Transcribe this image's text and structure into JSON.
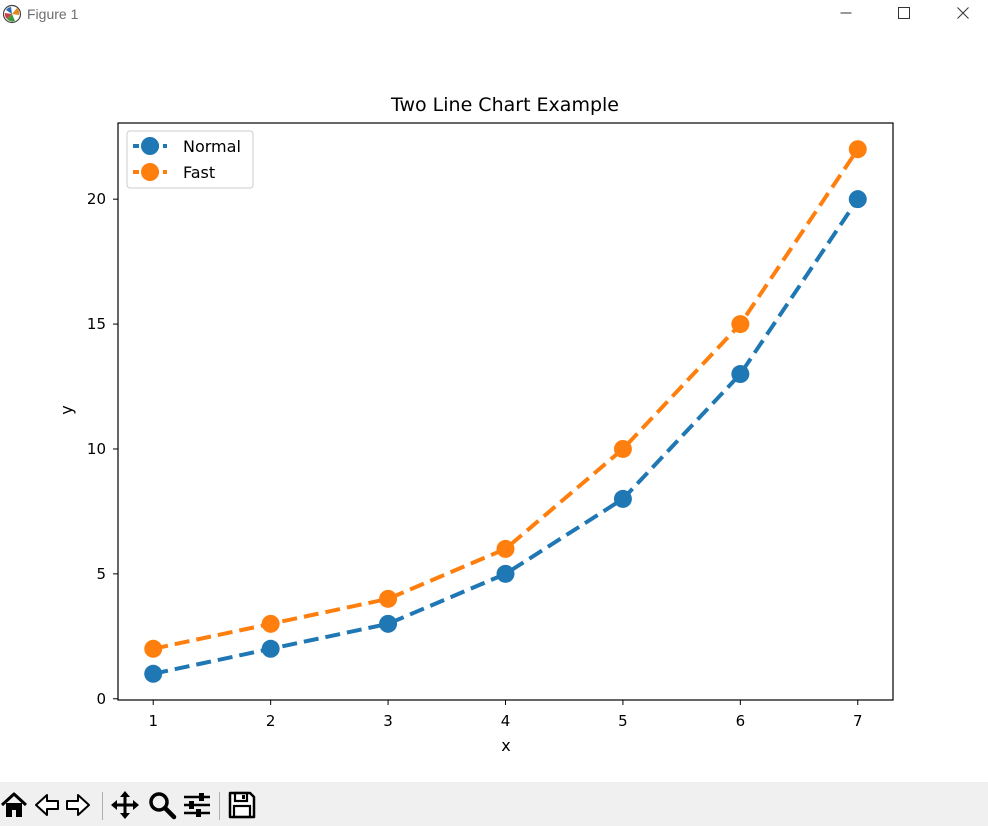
{
  "window": {
    "title": "Figure 1",
    "icons": [
      "app-icon",
      "minimize-icon",
      "maximize-icon",
      "close-icon"
    ]
  },
  "toolbar": {
    "icons": [
      "home-icon",
      "back-arrow-icon",
      "forward-arrow-icon",
      "pan-icon",
      "zoom-icon",
      "configure-subplots-icon",
      "save-icon"
    ]
  },
  "chart_data": {
    "type": "line",
    "title": "Two Line Chart Example",
    "xlabel": "x",
    "ylabel": "y",
    "x": [
      1,
      2,
      3,
      4,
      5,
      6,
      7
    ],
    "xticks": [
      "1",
      "2",
      "3",
      "4",
      "5",
      "6",
      "7"
    ],
    "yticks": [
      "0",
      "5",
      "10",
      "15",
      "20"
    ],
    "xlim": [
      0.7,
      7.3
    ],
    "ylim": [
      -0.05,
      23.05
    ],
    "grid": false,
    "legend_position": "top-left",
    "line_style": "dashed",
    "marker": "circle",
    "series": [
      {
        "name": "Normal",
        "values": [
          1,
          2,
          3,
          5,
          8,
          13,
          20
        ],
        "color": "#1f77b4"
      },
      {
        "name": "Fast",
        "values": [
          2,
          3,
          4,
          6,
          10,
          15,
          22
        ],
        "color": "#ff7f0e"
      }
    ]
  }
}
